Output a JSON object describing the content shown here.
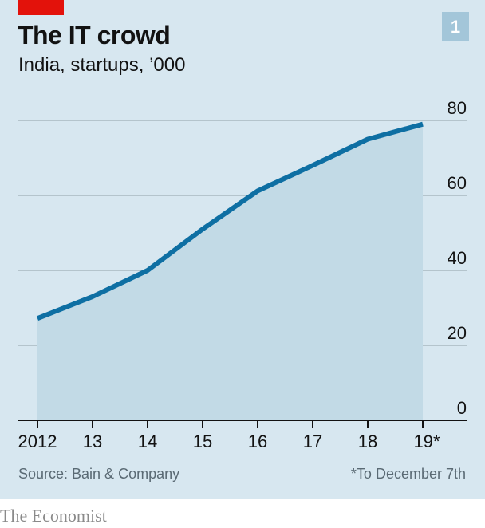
{
  "header": {
    "title": "The IT crowd",
    "subtitle": "India, startups, ’000",
    "chart_number": "1"
  },
  "footer": {
    "source": "Source: Bain & Company",
    "footnote": "*To December 7th",
    "brand": "The Economist"
  },
  "colors": {
    "background": "#d7e7f0",
    "line": "#0e6fa3",
    "area": "#c2dae6",
    "gridline": "#a8b8c0",
    "accent_red": "#e3120b",
    "badge": "#a3c6d9"
  },
  "chart_data": {
    "type": "area",
    "title": "The IT crowd",
    "subtitle": "India, startups, '000",
    "categories": [
      "2012",
      "13",
      "14",
      "15",
      "16",
      "17",
      "18",
      "19*"
    ],
    "series": [
      {
        "name": "Startups ('000)",
        "values": [
          27.2,
          33,
          40,
          51,
          61.2,
          68,
          75,
          79
        ]
      }
    ],
    "xlabel": "",
    "ylabel": "",
    "ylim": [
      0,
      80
    ],
    "yticks": [
      0,
      20,
      40,
      60,
      80
    ],
    "ytick_side": "right",
    "grid": true,
    "legend": "none",
    "source": "Source: Bain & Company",
    "note": "*To December 7th"
  }
}
